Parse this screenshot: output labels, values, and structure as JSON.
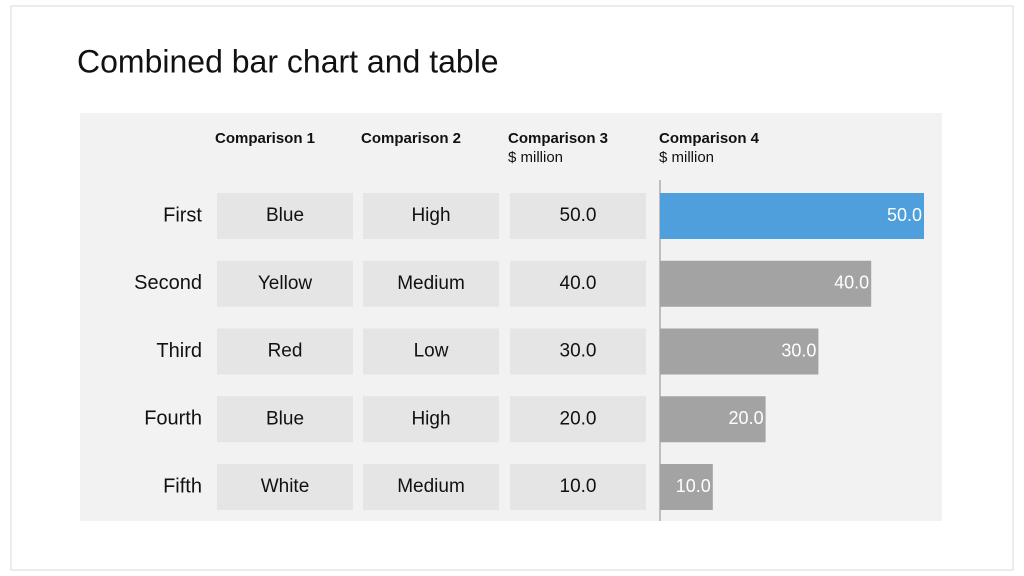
{
  "title": "Combined bar chart and table",
  "table": {
    "columns": [
      {
        "name": "Comparison 1"
      },
      {
        "name": "Comparison 2"
      },
      {
        "name": "Comparison 3",
        "unit": "$ million"
      }
    ],
    "row_labels": [
      "First",
      "Second",
      "Third",
      "Fourth",
      "Fifth"
    ],
    "rows": [
      [
        "Blue",
        "High",
        "50.0"
      ],
      [
        "Yellow",
        "Medium",
        "40.0"
      ],
      [
        "Red",
        "Low",
        "30.0"
      ],
      [
        "Blue",
        "High",
        "20.0"
      ],
      [
        "White",
        "Medium",
        "10.0"
      ]
    ]
  },
  "chart_data": {
    "type": "bar",
    "orientation": "horizontal",
    "title": "Comparison 4",
    "subtitle": "$ million",
    "values": [
      50,
      40,
      30,
      20,
      10
    ],
    "value_labels": [
      "50.0",
      "40.0",
      "30.0",
      "20.0",
      "10.0"
    ],
    "colors": [
      "#4f9fdc",
      "#a3a3a3",
      "#a3a3a3",
      "#a3a3a3",
      "#a3a3a3"
    ],
    "xlim": [
      0,
      50
    ]
  }
}
